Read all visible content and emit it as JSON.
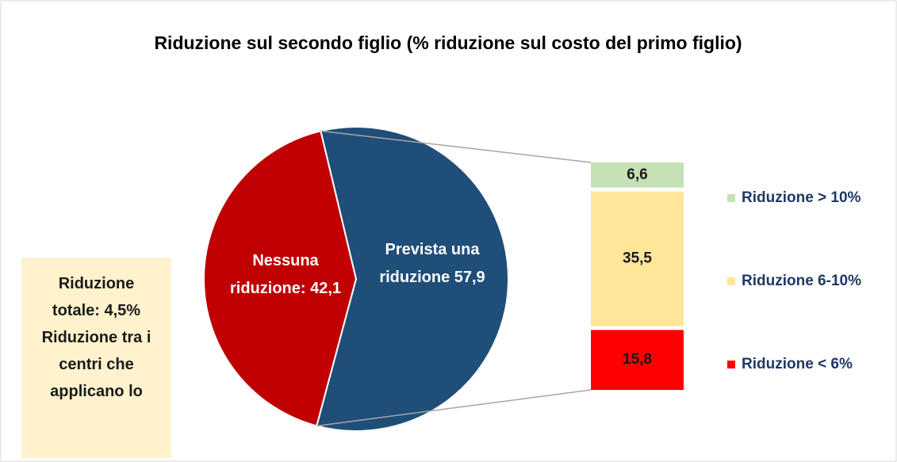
{
  "chart_data": {
    "type": "pie",
    "title": "Riduzione sul secondo figlio (% riduzione sul costo del primo figlio)",
    "values": [
      42.1,
      57.9
    ],
    "value_labels": [
      "Nessuna riduzione: 42,1",
      "Prevista una riduzione 57,9"
    ],
    "colors": [
      "#c00000",
      "#1f4e79"
    ],
    "breakdown": {
      "type": "bar",
      "stacked": true,
      "series": [
        {
          "name": "Riduzione > 10%",
          "color": "#c5e0b4",
          "values": [
            6.6
          ],
          "value_labels": [
            "6,6"
          ]
        },
        {
          "name": "Riduzione 6-10%",
          "color": "#ffe699",
          "values": [
            35.5
          ],
          "value_labels": [
            "35,5"
          ]
        },
        {
          "name": "Riduzione < 6%",
          "color": "#ff0000",
          "values": [
            15.8
          ],
          "value_labels": [
            "15,8"
          ]
        }
      ]
    },
    "note": "Riduzione totale: 4,5% Riduzione tra i centri che applicano lo"
  }
}
